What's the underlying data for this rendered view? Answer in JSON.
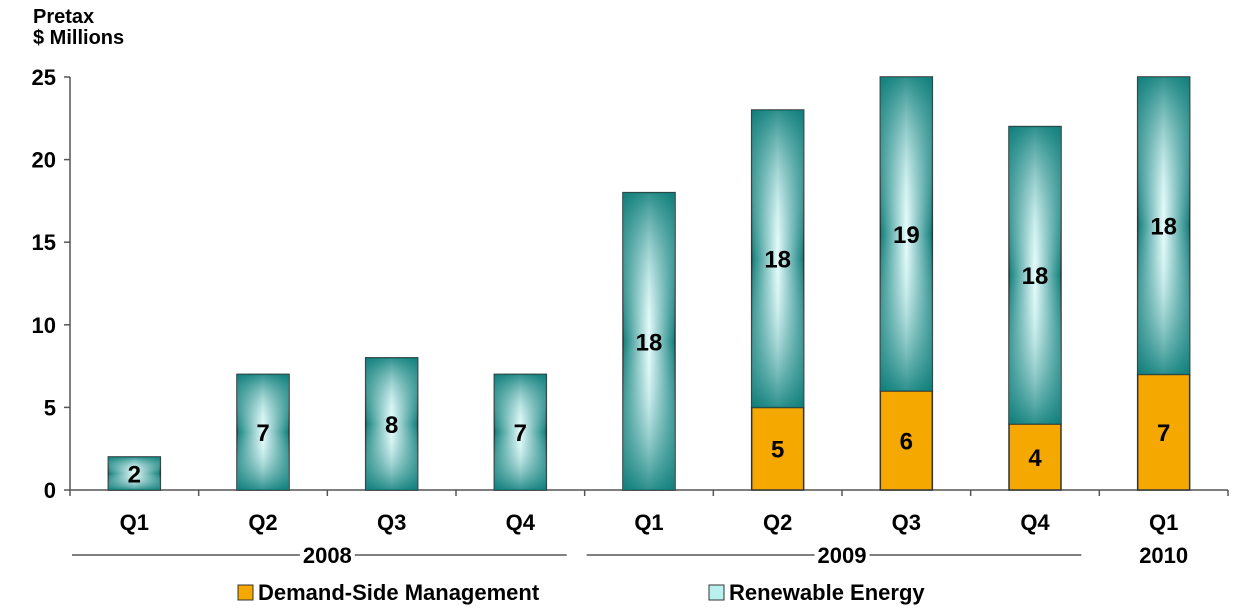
{
  "chart_data": {
    "type": "bar",
    "stacked": true,
    "ylabel_lines": [
      "Pretax",
      "$ Millions"
    ],
    "ylim": [
      0,
      25
    ],
    "yticks": [
      0,
      5,
      10,
      15,
      20,
      25
    ],
    "categories": [
      "Q1",
      "Q2",
      "Q3",
      "Q4",
      "Q1",
      "Q2",
      "Q3",
      "Q4",
      "Q1"
    ],
    "groups": [
      {
        "label": "2008",
        "start": 0,
        "end": 3,
        "line": true
      },
      {
        "label": "2009",
        "start": 4,
        "end": 7,
        "line": true
      },
      {
        "label": "2010",
        "start": 8,
        "end": 8,
        "line": false
      }
    ],
    "series": [
      {
        "name": "Demand-Side Management",
        "color": "#F5A800",
        "values": [
          0,
          0,
          0,
          0,
          0,
          5,
          6,
          4,
          7
        ]
      },
      {
        "name": "Renewable Energy",
        "color": "#0E7E7A",
        "values": [
          2,
          7,
          8,
          7,
          18,
          18,
          19,
          18,
          18
        ]
      }
    ],
    "legend_position": "bottom",
    "grid": false
  }
}
